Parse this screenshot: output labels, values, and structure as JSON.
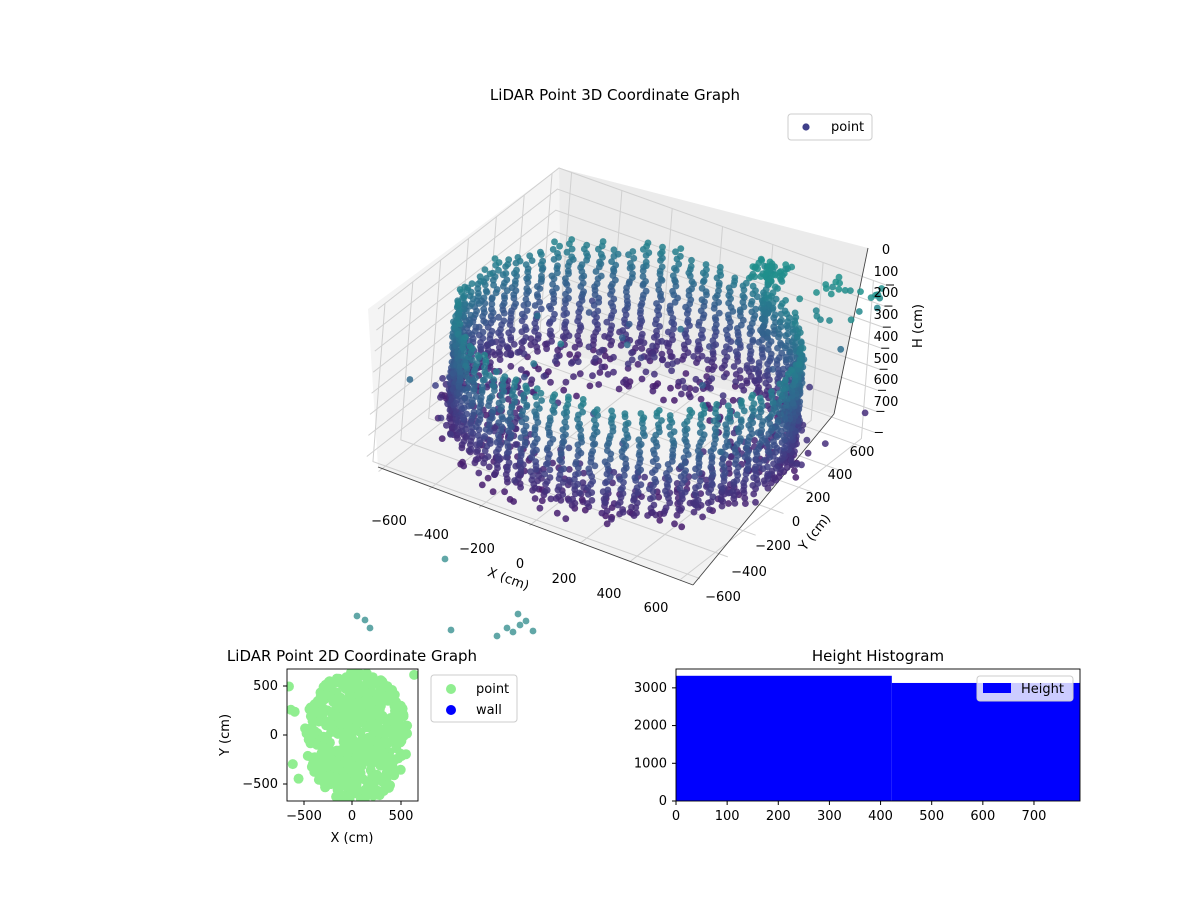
{
  "chart_data": [
    {
      "type": "scatter",
      "projection": "3d",
      "title": "LiDAR Point 3D Coordinate Graph",
      "xlabel": "X (cm)",
      "ylabel": "Y (cm)",
      "zlabel": "H (cm)",
      "xticks": [
        "−600",
        "−400",
        "−200",
        "0",
        "200",
        "400",
        "600"
      ],
      "yticks": [
        "−600",
        "−400",
        "−200",
        "0",
        "200",
        "400",
        "600"
      ],
      "zticks": [
        "0",
        "100",
        "200",
        "300",
        "400",
        "500",
        "600",
        "700"
      ],
      "xlim": [
        -650,
        650
      ],
      "ylim": [
        -650,
        650
      ],
      "zlim": [
        750,
        0
      ],
      "z_axis_inverted": true,
      "colormap": "viridis",
      "grid": true,
      "legend": {
        "position": "upper-right",
        "entries": [
          {
            "name": "point",
            "color": "#3f3f8a"
          }
        ]
      },
      "series": [
        {
          "name": "point",
          "note_shape": "hollow bowl-shaped point cloud, radius about 650 cm, heights 0–750 cm"
        }
      ]
    },
    {
      "type": "scatter",
      "title": "LiDAR Point 2D Coordinate Graph",
      "xlabel": "X (cm)",
      "ylabel": "Y (cm)",
      "xticks": [
        "−500",
        "0",
        "500"
      ],
      "yticks": [
        "−500",
        "0",
        "500"
      ],
      "xlim": [
        -680,
        680
      ],
      "ylim": [
        -680,
        680
      ],
      "legend": {
        "position": "outside-right",
        "entries": [
          {
            "name": "point",
            "color": "#90ee90"
          },
          {
            "name": "wall",
            "color": "#0000ff"
          }
        ]
      },
      "series": [
        {
          "name": "point",
          "color": "#90ee90"
        },
        {
          "name": "wall",
          "color": "#0000ff",
          "values": []
        }
      ]
    },
    {
      "type": "bar",
      "subtype": "histogram",
      "title": "Height Histogram",
      "xticks": [
        "0",
        "100",
        "200",
        "300",
        "400",
        "500",
        "600",
        "700"
      ],
      "yticks": [
        "0",
        "1000",
        "2000",
        "3000"
      ],
      "xlim": [
        0,
        790
      ],
      "ylim": [
        0,
        3500
      ],
      "bars": [
        {
          "x0": 0,
          "x1": 422,
          "value": 3320
        },
        {
          "x0": 422,
          "x1": 790,
          "value": 3130
        }
      ],
      "color": "#0000ff",
      "legend": {
        "position": "upper-right",
        "entries": [
          {
            "name": "Height",
            "color": "#0000ff"
          }
        ]
      }
    }
  ]
}
